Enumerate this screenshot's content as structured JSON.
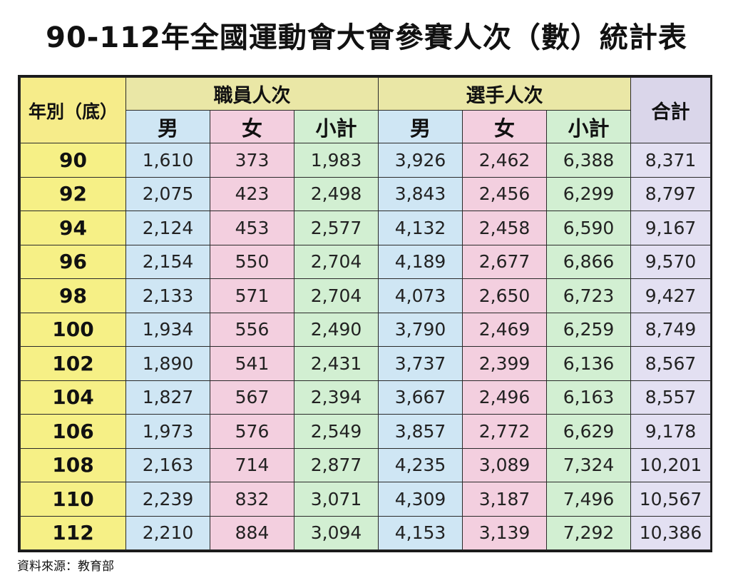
{
  "title": "90-112年全國運動會大會參賽人次（數）統計表",
  "source": "資料來源：教育部",
  "table": {
    "year_header": "年別（底）",
    "group_staff": "職員人次",
    "group_athletes": "選手人次",
    "total_header": "合計",
    "sub_male": "男",
    "sub_female": "女",
    "sub_subtotal": "小計",
    "rows": [
      {
        "year": "90",
        "staff_m": "1,610",
        "staff_f": "373",
        "staff_sub": "1,983",
        "ath_m": "3,926",
        "ath_f": "2,462",
        "ath_sub": "6,388",
        "total": "8,371"
      },
      {
        "year": "92",
        "staff_m": "2,075",
        "staff_f": "423",
        "staff_sub": "2,498",
        "ath_m": "3,843",
        "ath_f": "2,456",
        "ath_sub": "6,299",
        "total": "8,797"
      },
      {
        "year": "94",
        "staff_m": "2,124",
        "staff_f": "453",
        "staff_sub": "2,577",
        "ath_m": "4,132",
        "ath_f": "2,458",
        "ath_sub": "6,590",
        "total": "9,167"
      },
      {
        "year": "96",
        "staff_m": "2,154",
        "staff_f": "550",
        "staff_sub": "2,704",
        "ath_m": "4,189",
        "ath_f": "2,677",
        "ath_sub": "6,866",
        "total": "9,570"
      },
      {
        "year": "98",
        "staff_m": "2,133",
        "staff_f": "571",
        "staff_sub": "2,704",
        "ath_m": "4,073",
        "ath_f": "2,650",
        "ath_sub": "6,723",
        "total": "9,427"
      },
      {
        "year": "100",
        "staff_m": "1,934",
        "staff_f": "556",
        "staff_sub": "2,490",
        "ath_m": "3,790",
        "ath_f": "2,469",
        "ath_sub": "6,259",
        "total": "8,749"
      },
      {
        "year": "102",
        "staff_m": "1,890",
        "staff_f": "541",
        "staff_sub": "2,431",
        "ath_m": "3,737",
        "ath_f": "2,399",
        "ath_sub": "6,136",
        "total": "8,567"
      },
      {
        "year": "104",
        "staff_m": "1,827",
        "staff_f": "567",
        "staff_sub": "2,394",
        "ath_m": "3,667",
        "ath_f": "2,496",
        "ath_sub": "6,163",
        "total": "8,557"
      },
      {
        "year": "106",
        "staff_m": "1,973",
        "staff_f": "576",
        "staff_sub": "2,549",
        "ath_m": "3,857",
        "ath_f": "2,772",
        "ath_sub": "6,629",
        "total": "9,178"
      },
      {
        "year": "108",
        "staff_m": "2,163",
        "staff_f": "714",
        "staff_sub": "2,877",
        "ath_m": "4,235",
        "ath_f": "3,089",
        "ath_sub": "7,324",
        "total": "10,201"
      },
      {
        "year": "110",
        "staff_m": "2,239",
        "staff_f": "832",
        "staff_sub": "3,071",
        "ath_m": "4,309",
        "ath_f": "3,187",
        "ath_sub": "7,496",
        "total": "10,567"
      },
      {
        "year": "112",
        "staff_m": "2,210",
        "staff_f": "884",
        "staff_sub": "3,094",
        "ath_m": "4,153",
        "ath_f": "3,139",
        "ath_sub": "7,292",
        "total": "10,386"
      }
    ]
  },
  "colors": {
    "year_column": "#f6f086",
    "group_header": "#eae7a6",
    "male": "#cfe6f4",
    "female": "#f3cfdf",
    "subtotal": "#d2efd2",
    "total": "#e3e0f2",
    "border": "#1a1a1a"
  }
}
